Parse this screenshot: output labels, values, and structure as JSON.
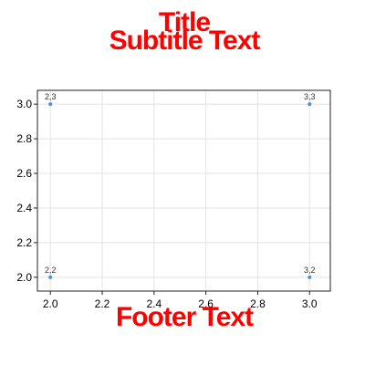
{
  "title": "Title",
  "subtitle": "Subtitle Text",
  "footer": "Footer Text",
  "colors": {
    "title": "#ff0000",
    "marker": "#4a90d9",
    "grid": "#e3e3e3"
  },
  "chart_data": {
    "type": "scatter",
    "title": "Title",
    "subtitle": "Subtitle Text",
    "xlabel": "",
    "ylabel": "",
    "xlim": [
      1.95,
      3.08
    ],
    "ylim": [
      1.92,
      3.08
    ],
    "xticks": [
      2.0,
      2.2,
      2.4,
      2.6,
      2.8,
      3.0
    ],
    "yticks": [
      2.0,
      2.2,
      2.4,
      2.6,
      2.8,
      3.0
    ],
    "grid": true,
    "points": [
      {
        "x": 2,
        "y": 3,
        "label": "2,3"
      },
      {
        "x": 3,
        "y": 3,
        "label": "3,3"
      },
      {
        "x": 2,
        "y": 2,
        "label": "2,2"
      },
      {
        "x": 3,
        "y": 2,
        "label": "3,2"
      }
    ]
  }
}
